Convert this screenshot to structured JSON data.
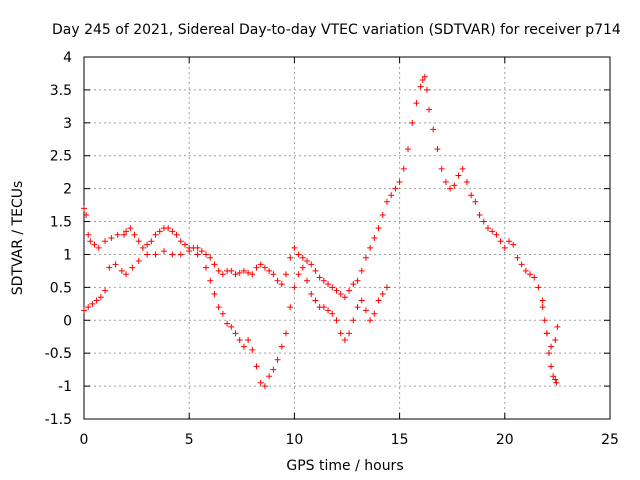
{
  "chart_data": {
    "type": "scatter",
    "title": "Day 245 of 2021, Sidereal Day-to-day VTEC variation (SDTVAR) for receiver p714",
    "xlabel": "GPS time / hours",
    "ylabel": "SDTVAR / TECUs",
    "xlim": [
      0,
      25
    ],
    "ylim": [
      -1.5,
      4
    ],
    "xticks": [
      0,
      5,
      10,
      15,
      20,
      25
    ],
    "xtick_labels": [
      "0",
      "5",
      "10",
      "15",
      "20",
      "25"
    ],
    "yticks": [
      -1.5,
      -1,
      -0.5,
      0,
      0.5,
      1,
      1.5,
      2,
      2.5,
      3,
      3.5,
      4
    ],
    "ytick_labels": [
      "-1.5",
      "-1",
      "-0.5",
      "0",
      "0.5",
      "1",
      "1.5",
      "2",
      "2.5",
      "3",
      "3.5",
      "4"
    ],
    "grid": true,
    "marker": "+",
    "color": "#ff0000",
    "series": [
      {
        "name": "upper_trace",
        "x": [
          0.0,
          0.1,
          0.2,
          0.3,
          0.5,
          0.7,
          1.0,
          1.3,
          1.6,
          1.9,
          2.0,
          2.2,
          2.4,
          2.6,
          2.8,
          3.0,
          3.2,
          3.4,
          3.6,
          3.8,
          4.0,
          4.2,
          4.4,
          4.6,
          4.8,
          5.0,
          5.2,
          5.4,
          5.6,
          5.8,
          6.0,
          6.2,
          6.4,
          6.6,
          6.8,
          7.0,
          7.2,
          7.4,
          7.6,
          7.8,
          8.0,
          8.2,
          8.4,
          8.6,
          8.8,
          9.0,
          9.2,
          9.4,
          9.6,
          9.8,
          10.0,
          10.2,
          10.4,
          10.6,
          10.8,
          11.0,
          11.2,
          11.4,
          11.6,
          11.8,
          12.0,
          12.2,
          12.4,
          12.6,
          12.8,
          13.0,
          13.2,
          13.4,
          13.6,
          13.8,
          14.0,
          14.2,
          14.4,
          14.6,
          14.8,
          15.0,
          15.2,
          15.4,
          15.6,
          15.8,
          16.0,
          16.1,
          16.2,
          16.3,
          16.4,
          16.6,
          16.8,
          17.0,
          17.2,
          17.4,
          17.6,
          17.8,
          18.0,
          18.2,
          18.4,
          18.6,
          18.8,
          19.0,
          19.2,
          19.4,
          19.6,
          19.8,
          20.0,
          20.2,
          20.4,
          20.6,
          20.8,
          21.0,
          21.2,
          21.4,
          21.6,
          21.8,
          22.0,
          22.2,
          22.4
        ],
        "y": [
          1.7,
          1.6,
          1.3,
          1.2,
          1.15,
          1.1,
          1.2,
          1.25,
          1.3,
          1.3,
          1.35,
          1.4,
          1.3,
          1.2,
          1.1,
          1.15,
          1.2,
          1.3,
          1.35,
          1.4,
          1.4,
          1.35,
          1.3,
          1.2,
          1.15,
          1.1,
          1.1,
          1.1,
          1.05,
          1.0,
          0.95,
          0.85,
          0.75,
          0.7,
          0.75,
          0.75,
          0.7,
          0.72,
          0.75,
          0.72,
          0.7,
          0.8,
          0.85,
          0.8,
          0.75,
          0.7,
          0.6,
          0.55,
          0.7,
          0.95,
          1.1,
          1.0,
          0.95,
          0.9,
          0.85,
          0.75,
          0.65,
          0.6,
          0.55,
          0.5,
          0.45,
          0.4,
          0.35,
          0.45,
          0.55,
          0.6,
          0.75,
          0.95,
          1.1,
          1.25,
          1.4,
          1.6,
          1.8,
          1.9,
          2.0,
          2.1,
          2.3,
          2.6,
          3.0,
          3.3,
          3.55,
          3.65,
          3.7,
          3.5,
          3.2,
          2.9,
          2.6,
          2.3,
          2.1,
          2.0,
          2.05,
          2.2,
          2.3,
          2.1,
          1.9,
          1.8,
          1.6,
          1.5,
          1.4,
          1.35,
          1.3,
          1.2,
          1.1,
          1.2,
          1.15,
          0.95,
          0.85,
          0.75,
          0.7,
          0.65,
          0.5,
          0.3,
          -0.2,
          -0.4,
          -0.3
        ]
      },
      {
        "name": "lower_trace",
        "x": [
          0.0,
          0.2,
          0.4,
          0.6,
          0.8,
          1.0,
          1.2,
          1.5,
          1.8,
          2.0,
          2.3,
          2.6,
          3.0,
          3.4,
          3.8,
          4.2,
          4.6,
          5.0,
          5.4,
          5.8,
          6.0,
          6.2,
          6.4,
          6.6,
          6.8,
          7.0,
          7.2,
          7.4,
          7.6,
          7.8,
          8.0,
          8.2,
          8.4,
          8.6,
          8.8,
          9.0,
          9.2,
          9.4,
          9.6,
          9.8,
          10.0,
          10.2,
          10.4,
          10.6,
          10.8,
          11.0,
          11.2,
          11.4,
          11.6,
          11.8,
          12.0,
          12.2,
          12.4,
          12.6,
          12.8,
          13.0,
          13.2,
          13.4,
          13.6,
          13.8,
          14.0,
          14.2,
          14.4
        ],
        "y": [
          0.15,
          0.2,
          0.25,
          0.3,
          0.35,
          0.45,
          0.8,
          0.85,
          0.75,
          0.7,
          0.8,
          0.9,
          1.0,
          1.0,
          1.05,
          1.0,
          1.0,
          1.05,
          1.0,
          0.8,
          0.6,
          0.4,
          0.2,
          0.1,
          -0.05,
          -0.1,
          -0.2,
          -0.3,
          -0.4,
          -0.3,
          -0.45,
          -0.7,
          -0.95,
          -1.0,
          -0.85,
          -0.75,
          -0.6,
          -0.4,
          -0.2,
          0.2,
          0.5,
          0.7,
          0.8,
          0.6,
          0.4,
          0.3,
          0.2,
          0.2,
          0.15,
          0.1,
          0.0,
          -0.2,
          -0.3,
          -0.2,
          0.0,
          0.2,
          0.3,
          0.15,
          0.0,
          0.1,
          0.3,
          0.4,
          0.5
        ]
      },
      {
        "name": "end_drop",
        "x": [
          21.8,
          21.9,
          22.0,
          22.1,
          22.2,
          22.3,
          22.4,
          22.45,
          22.5
        ],
        "y": [
          0.2,
          0.0,
          -0.2,
          -0.5,
          -0.7,
          -0.85,
          -0.9,
          -0.95,
          -0.1
        ]
      }
    ]
  }
}
